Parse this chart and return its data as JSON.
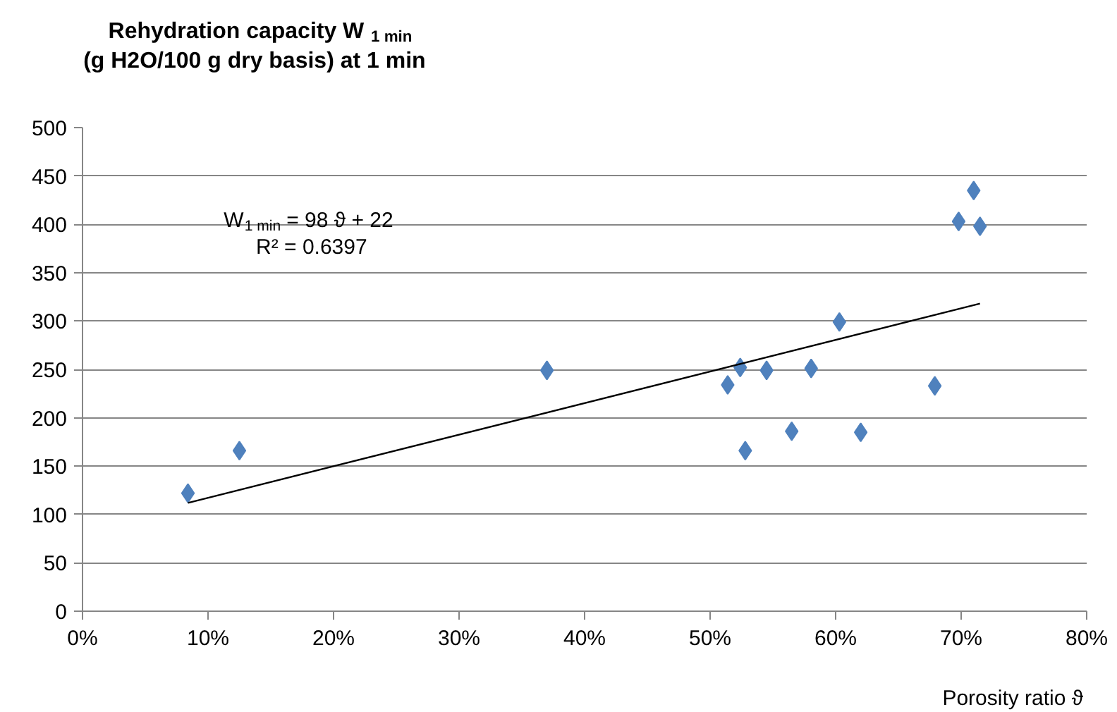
{
  "chart_data": {
    "type": "scatter",
    "title": "Rehydration capacity W$_{1 min}$\n(g H2O/100 g dry basis) at 1 min",
    "xlabel": "Porosity ratio ϑ",
    "annotations": [
      "W$_{1 min}$ = 98 ϑ + 22",
      "R² = 0.6397"
    ],
    "x": [
      0.084,
      0.125,
      0.37,
      0.514,
      0.524,
      0.528,
      0.545,
      0.565,
      0.5805,
      0.603,
      0.62,
      0.679,
      0.698,
      0.71,
      0.715
    ],
    "xlim": [
      0,
      0.8
    ],
    "xticks": [
      {
        "value": 0,
        "label": "0%"
      },
      {
        "value": 0.1,
        "label": "10%"
      },
      {
        "value": 0.2,
        "label": "20%"
      },
      {
        "value": 0.3,
        "label": "30%"
      },
      {
        "value": 0.4,
        "label": "40%"
      },
      {
        "value": 0.5,
        "label": "50%"
      },
      {
        "value": 0.6,
        "label": "60%"
      },
      {
        "value": 0.7,
        "label": "70%"
      },
      {
        "value": 0.8,
        "label": "80%"
      }
    ],
    "ylim": [
      0,
      500
    ],
    "yticks": [
      0,
      50,
      100,
      150,
      200,
      250,
      300,
      350,
      400,
      450,
      500
    ],
    "grid": "y",
    "marker": "diamond",
    "series": [
      {
        "color": "#4f81bd",
        "values": [
          122,
          166,
          249,
          234,
          252,
          166,
          249,
          186,
          251,
          299,
          185,
          233,
          403,
          435,
          398
        ]
      },
      {
        "type": "line",
        "color": "#000000",
        "x": [
          0.084,
          0.715
        ],
        "values": [
          112,
          318
        ],
        "marker": "none"
      }
    ]
  }
}
